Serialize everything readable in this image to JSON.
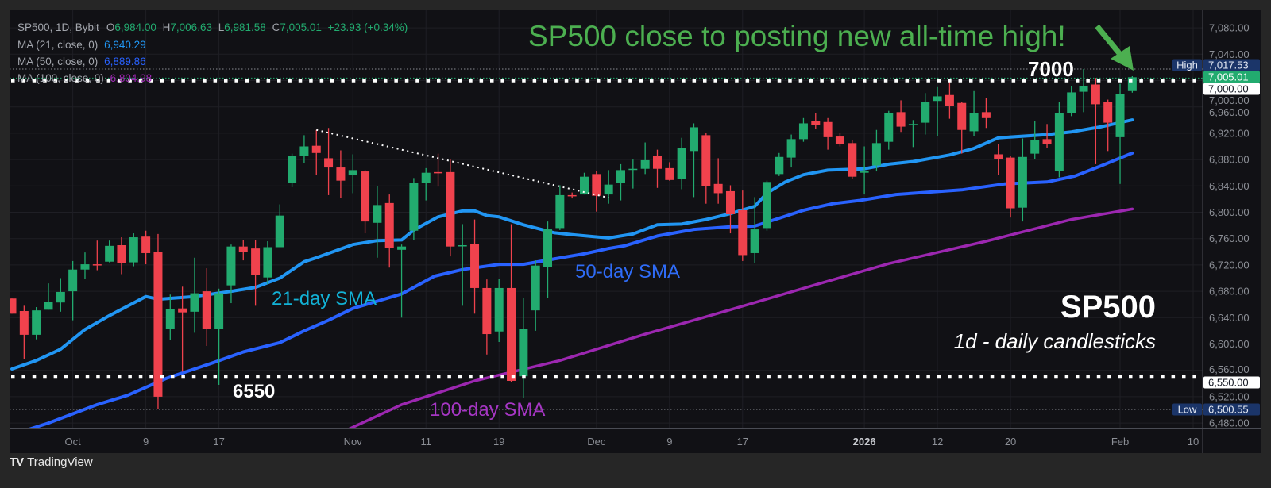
{
  "header": {
    "symbol": "SP500, 1D, Bybit",
    "o_label": "O",
    "o": "6,984.00",
    "h_label": "H",
    "h": "7,006.63",
    "l_label": "L",
    "l": "6,981.58",
    "c_label": "C",
    "c": "7,005.01",
    "change": "+23.93 (+0.34%)",
    "value_color": "#22ab6f"
  },
  "indicators": [
    {
      "label": "MA (21, close, 0)",
      "value": "6,940.29",
      "color": "#2196f3"
    },
    {
      "label": "MA (50, close, 0)",
      "value": "6,889.86",
      "color": "#2962ff"
    },
    {
      "label": "MA (100, close, 0)",
      "value": "6,804.98",
      "color": "#9c27b0"
    }
  ],
  "annotations": {
    "headline": "SP500 close to posting new all-time high!",
    "level_high": "7000",
    "level_low": "6550",
    "sma21_label": "21-day SMA",
    "sma50_label": "50-day SMA",
    "sma100_label": "100-day SMA",
    "title": "SP500",
    "subtitle": "1d - daily candlesticks",
    "headline_color": "#4caf50"
  },
  "price_tags": [
    {
      "label": "High",
      "value": "7,017.53",
      "price": 7017.53,
      "style": "blue"
    },
    {
      "label": "",
      "value": "7,005.01",
      "price": 7005.01,
      "style": "green"
    },
    {
      "label": "",
      "value": "7,000.00",
      "price": 7000,
      "style": "white"
    },
    {
      "label": "",
      "value": "6,550.00",
      "price": 6550,
      "style": "white"
    },
    {
      "label": "Low",
      "value": "6,500.55",
      "price": 6500.55,
      "style": "blue"
    }
  ],
  "branding": "TradingView",
  "chart_data": {
    "type": "candlestick",
    "title": "",
    "xlabel": "",
    "ylabel": "",
    "ylim": [
      6472,
      7107
    ],
    "grid": true,
    "colors": {
      "up": "#22ab6f",
      "down": "#f0424d",
      "sma21": "#2196f3",
      "sma50": "#2962ff",
      "sma100": "#9c27b0"
    },
    "y_ticks": [
      "7,080.00",
      "7,040.00",
      "7,000.00",
      "6,960.00",
      "6,920.00",
      "6,880.00",
      "6,840.00",
      "6,800.00",
      "6,760.00",
      "6,720.00",
      "6,680.00",
      "6,640.00",
      "6,600.00",
      "6,560.00",
      "6,520.00",
      "6,480.00"
    ],
    "y_tick_values": [
      7080,
      7040,
      7000,
      6960,
      6920,
      6880,
      6840,
      6800,
      6760,
      6720,
      6680,
      6640,
      6600,
      6560,
      6520,
      6480
    ],
    "x_ticks": [
      {
        "label": "Oct",
        "bar": 5
      },
      {
        "label": "9",
        "bar": 11
      },
      {
        "label": "17",
        "bar": 17
      },
      {
        "label": "Nov",
        "bar": 28
      },
      {
        "label": "11",
        "bar": 34
      },
      {
        "label": "19",
        "bar": 40
      },
      {
        "label": "Dec",
        "bar": 48
      },
      {
        "label": "9",
        "bar": 54
      },
      {
        "label": "17",
        "bar": 60
      },
      {
        "label": "2026",
        "bar": 70,
        "bold": true
      },
      {
        "label": "12",
        "bar": 76
      },
      {
        "label": "20",
        "bar": 82
      },
      {
        "label": "Feb",
        "bar": 91
      },
      {
        "label": "10",
        "bar": 97
      }
    ],
    "ohlc_fields": [
      "open",
      "high",
      "low",
      "close"
    ],
    "candles": [
      [
        6669,
        6669,
        6646,
        6646
      ],
      [
        6650,
        6658,
        6577,
        6614
      ],
      [
        6614,
        6656,
        6607,
        6651
      ],
      [
        6652,
        6692,
        6652,
        6664
      ],
      [
        6663,
        6700,
        6649,
        6679
      ],
      [
        6680,
        6726,
        6636,
        6713
      ],
      [
        6713,
        6739,
        6699,
        6721
      ],
      [
        6721,
        6757,
        6712,
        6720
      ],
      [
        6725,
        6757,
        6724,
        6749
      ],
      [
        6750,
        6762,
        6706,
        6723
      ],
      [
        6724,
        6768,
        6718,
        6762
      ],
      [
        6763,
        6772,
        6721,
        6738
      ],
      [
        6740,
        6767,
        6500.55,
        6520
      ],
      [
        6623,
        6675,
        6606,
        6653
      ],
      [
        6654,
        6687,
        6558,
        6648
      ],
      [
        6649,
        6731,
        6617,
        6677
      ],
      [
        6680,
        6715,
        6597,
        6623
      ],
      [
        6623,
        6684,
        6538,
        6677
      ],
      [
        6689,
        6751,
        6662,
        6748
      ],
      [
        6748,
        6758,
        6727,
        6740
      ],
      [
        6745,
        6758,
        6658,
        6705
      ],
      [
        6701,
        6756,
        6691,
        6747
      ],
      [
        6747,
        6812,
        6747,
        6795
      ],
      [
        6844,
        6889,
        6838,
        6886
      ],
      [
        6885,
        6917,
        6875,
        6900
      ],
      [
        6901,
        6925,
        6857,
        6890
      ],
      [
        6882,
        6928,
        6826,
        6868
      ],
      [
        6868,
        6894,
        6822,
        6848
      ],
      [
        6856,
        6888,
        6829,
        6864
      ],
      [
        6862,
        6864,
        6768,
        6786
      ],
      [
        6784,
        6840,
        6731,
        6811
      ],
      [
        6814,
        6827,
        6716,
        6746
      ],
      [
        6743,
        6751,
        6640,
        6748
      ],
      [
        6772,
        6852,
        6758,
        6844
      ],
      [
        6845,
        6867,
        6818,
        6860
      ],
      [
        6861,
        6889,
        6839,
        6860
      ],
      [
        6861,
        6880,
        6733,
        6748
      ],
      [
        6749,
        6782,
        6658,
        6750
      ],
      [
        6752,
        6789,
        6646,
        6685
      ],
      [
        6685,
        6698,
        6584,
        6615
      ],
      [
        6619,
        6699,
        6603,
        6685
      ],
      [
        6685,
        6782,
        6542,
        6544
      ],
      [
        6551,
        6670,
        6518,
        6623
      ],
      [
        6651,
        6727,
        6620,
        6719
      ],
      [
        6717,
        6786,
        6670,
        6774
      ],
      [
        6776,
        6841,
        6773,
        6826
      ],
      [
        6826,
        6830,
        6821,
        6825
      ],
      [
        6827,
        6860,
        6827,
        6854
      ],
      [
        6858,
        6863,
        6801,
        6825
      ],
      [
        6827,
        6864,
        6813,
        6842
      ],
      [
        6845,
        6873,
        6818,
        6864
      ],
      [
        6865,
        6880,
        6836,
        6866
      ],
      [
        6866,
        6906,
        6858,
        6879
      ],
      [
        6886,
        6895,
        6837,
        6866
      ],
      [
        6867,
        6876,
        6848,
        6849
      ],
      [
        6851,
        6913,
        6835,
        6898
      ],
      [
        6893,
        6935,
        6823,
        6929
      ],
      [
        6917,
        6921,
        6813,
        6840
      ],
      [
        6843,
        6882,
        6813,
        6829
      ],
      [
        6832,
        6841,
        6768,
        6797
      ],
      [
        6803,
        6833,
        6726,
        6735
      ],
      [
        6738,
        6823,
        6723,
        6774
      ],
      [
        6776,
        6848,
        6772,
        6846
      ],
      [
        6858,
        6890,
        6855,
        6884
      ],
      [
        6883,
        6918,
        6868,
        6911
      ],
      [
        6911,
        6943,
        6907,
        6935
      ],
      [
        6939,
        6950,
        6926,
        6932
      ],
      [
        6937,
        6943,
        6895,
        6914
      ],
      [
        6915,
        6921,
        6900,
        6904
      ],
      [
        6905,
        6910,
        6851,
        6854
      ],
      [
        6860,
        6900,
        6827,
        6862
      ],
      [
        6871,
        6925,
        6862,
        6905
      ],
      [
        6907,
        6954,
        6895,
        6951
      ],
      [
        6952,
        6970,
        6922,
        6930
      ],
      [
        6933,
        6940,
        6899,
        6934
      ],
      [
        6936,
        6981,
        6918,
        6967
      ],
      [
        6969,
        6990,
        6916,
        6976
      ],
      [
        6978,
        6998,
        6942,
        6962
      ],
      [
        6966,
        6968,
        6889,
        6925
      ],
      [
        6923,
        6984,
        6916,
        6950
      ],
      [
        6952,
        6974,
        6928,
        6943
      ],
      [
        6888,
        6904,
        6857,
        6881
      ],
      [
        6883,
        6886,
        6792,
        6806
      ],
      [
        6807,
        6912,
        6786,
        6884
      ],
      [
        6889,
        6939,
        6881,
        6910
      ],
      [
        6911,
        6934,
        6897,
        6903
      ],
      [
        6863,
        6968,
        6853,
        6950
      ],
      [
        6950,
        6992,
        6946,
        6982
      ],
      [
        6983,
        7017.53,
        6952,
        6991
      ],
      [
        6994,
        7004,
        6873,
        6964
      ],
      [
        6967,
        6971,
        6893,
        6936
      ],
      [
        6914,
        6995,
        6843,
        6980
      ],
      [
        6984,
        7006.63,
        6981.58,
        7005.01
      ]
    ],
    "series": [
      {
        "name": "MA (21, close, 0)",
        "points": [
          [
            0,
            6562
          ],
          [
            2,
            6575
          ],
          [
            4,
            6592
          ],
          [
            6,
            6622
          ],
          [
            8,
            6643
          ],
          [
            11,
            6672
          ],
          [
            12,
            6668
          ],
          [
            15,
            6672
          ],
          [
            18,
            6680
          ],
          [
            20,
            6686
          ],
          [
            22,
            6700
          ],
          [
            24,
            6725
          ],
          [
            25,
            6731
          ],
          [
            28,
            6751
          ],
          [
            30,
            6757
          ],
          [
            32,
            6758
          ],
          [
            33,
            6773
          ],
          [
            35,
            6793
          ],
          [
            37,
            6802
          ],
          [
            38,
            6802
          ],
          [
            39,
            6795
          ],
          [
            40,
            6793
          ],
          [
            42,
            6781
          ],
          [
            44.5,
            6769
          ],
          [
            46,
            6766
          ],
          [
            49,
            6761
          ],
          [
            51,
            6767
          ],
          [
            53,
            6781
          ],
          [
            55,
            6782
          ],
          [
            57,
            6789
          ],
          [
            59,
            6798
          ],
          [
            61,
            6809
          ],
          [
            62,
            6829
          ],
          [
            63.5,
            6846
          ],
          [
            65,
            6857
          ],
          [
            67,
            6864
          ],
          [
            70,
            6866
          ],
          [
            72,
            6873
          ],
          [
            74,
            6877
          ],
          [
            77,
            6887
          ],
          [
            79,
            6897
          ],
          [
            81,
            6913
          ],
          [
            85,
            6918
          ],
          [
            87,
            6922
          ],
          [
            89.5,
            6930
          ],
          [
            92,
            6940.29
          ]
        ]
      },
      {
        "name": "MA (50, close, 0)",
        "points": [
          [
            0,
            6462
          ],
          [
            3,
            6480
          ],
          [
            7,
            6508
          ],
          [
            9.5,
            6522
          ],
          [
            12.7,
            6548
          ],
          [
            16.6,
            6572
          ],
          [
            19,
            6588
          ],
          [
            22,
            6602
          ],
          [
            24,
            6620
          ],
          [
            26,
            6636
          ],
          [
            28,
            6654
          ],
          [
            32,
            6676
          ],
          [
            34.7,
            6703
          ],
          [
            37,
            6713
          ],
          [
            40,
            6721
          ],
          [
            42,
            6721
          ],
          [
            44.5,
            6729
          ],
          [
            47,
            6737
          ],
          [
            49,
            6745
          ],
          [
            50.3,
            6749
          ],
          [
            53,
            6764
          ],
          [
            56,
            6774
          ],
          [
            59,
            6778
          ],
          [
            61,
            6779
          ],
          [
            63,
            6791
          ],
          [
            65,
            6803
          ],
          [
            67.4,
            6813
          ],
          [
            69.6,
            6818
          ],
          [
            72.6,
            6827
          ],
          [
            78,
            6834
          ],
          [
            81.5,
            6843
          ],
          [
            85,
            6846
          ],
          [
            87.3,
            6855
          ],
          [
            89.5,
            6871
          ],
          [
            92,
            6889.86
          ]
        ]
      },
      {
        "name": "MA (100, close, 0)",
        "points": [
          [
            27,
            6465
          ],
          [
            32,
            6508
          ],
          [
            38,
            6544
          ],
          [
            45,
            6575
          ],
          [
            52,
            6615
          ],
          [
            59,
            6652
          ],
          [
            66,
            6690
          ],
          [
            72,
            6722
          ],
          [
            80,
            6756
          ],
          [
            87,
            6789
          ],
          [
            92,
            6804.98
          ]
        ]
      }
    ],
    "horizontal_levels": [
      7000,
      6550
    ],
    "trendline": [
      [
        25,
        6925
      ],
      [
        49,
        6822
      ]
    ]
  }
}
